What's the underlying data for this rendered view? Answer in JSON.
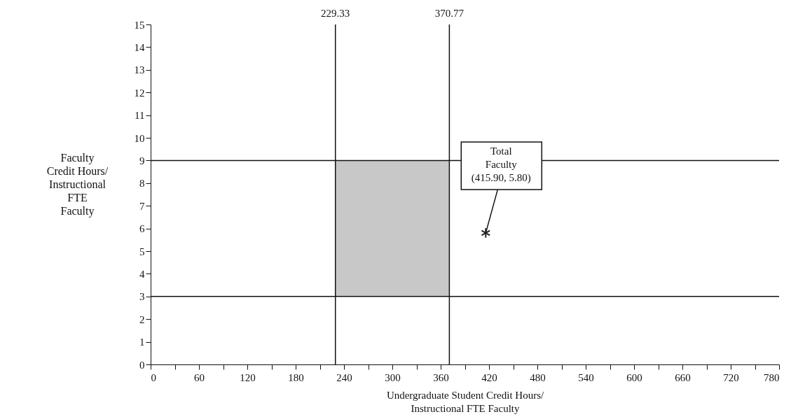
{
  "chart_data": {
    "type": "scatter",
    "xlabel": "Undergraduate Student Credit Hours/\nInstructional FTE Faculty",
    "ylabel": "Faculty\nCredit Hours/\nInstructional\nFTE\nFaculty",
    "x": [
      415.9
    ],
    "series": [
      {
        "color": "#222222",
        "values": [
          5.8
        ]
      }
    ],
    "marker": "cross",
    "xlim": [
      0,
      780
    ],
    "ylim": [
      0,
      15
    ],
    "xticks": [
      0,
      {
        "value": 30,
        "label": null
      },
      60,
      {
        "value": 90,
        "label": null
      },
      120,
      {
        "value": 150,
        "label": null
      },
      180,
      {
        "value": 210,
        "label": null
      },
      240,
      {
        "value": 270,
        "label": null
      },
      300,
      {
        "value": 330,
        "label": null
      },
      360,
      {
        "value": 390,
        "label": null
      },
      420,
      {
        "value": 450,
        "label": null
      },
      480,
      {
        "value": 510,
        "label": null
      },
      540,
      {
        "value": 570,
        "label": null
      },
      600,
      {
        "value": 630,
        "label": null
      },
      660,
      {
        "value": 690,
        "label": null
      },
      720,
      {
        "value": 750,
        "label": null
      },
      780
    ],
    "yticks": [
      0,
      1,
      2,
      3,
      4,
      5,
      6,
      7,
      8,
      9,
      10,
      11,
      12,
      13,
      14,
      15
    ],
    "ref_lines": [
      {
        "axis": "x",
        "value": 229.33,
        "label": "229.33"
      },
      {
        "axis": "x",
        "value": 370.77,
        "label": "370.77"
      },
      {
        "axis": "y",
        "value": 3,
        "label": null
      },
      {
        "axis": "y",
        "value": 9,
        "label": null
      }
    ],
    "bands": [
      {
        "axis": "x",
        "from": 229.33,
        "to": 370.77,
        "label": null,
        "color": "#c8c8c8"
      }
    ],
    "annotations": [
      {
        "text": "Total\nFaculty\n(415.90, 5.80)",
        "x": 415.9,
        "y": 5.8
      }
    ]
  }
}
